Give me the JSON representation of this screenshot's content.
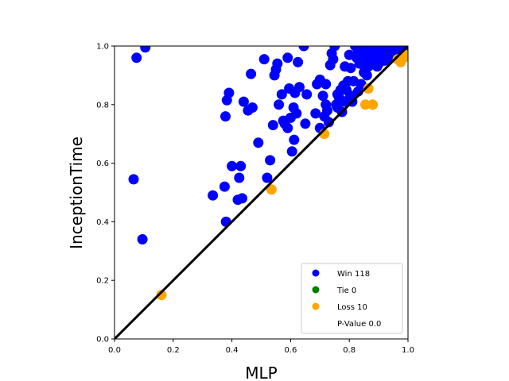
{
  "chart_data": {
    "type": "scatter",
    "xlabel": "MLP",
    "ylabel": "InceptionTime",
    "xlim": [
      0,
      1
    ],
    "ylim": [
      0,
      1
    ],
    "x_ticks": [
      "0.0",
      "0.2",
      "0.4",
      "0.6",
      "0.8",
      "1.0"
    ],
    "y_ticks": [
      "0.0",
      "0.2",
      "0.4",
      "0.6",
      "0.8",
      "1.0"
    ],
    "grid": false,
    "legend_position": "lower-right",
    "reference_line": {
      "from": [
        0,
        0
      ],
      "to": [
        1,
        1
      ],
      "color": "#000000"
    },
    "legend": [
      {
        "label": "Win 118",
        "color": "#0000ff"
      },
      {
        "label": "Tie 0",
        "color": "#008000"
      },
      {
        "label": "Loss 10",
        "color": "#ffa500"
      },
      {
        "label": "P-Value 0.0",
        "color": ""
      }
    ],
    "series": [
      {
        "name": "Win",
        "color": "#0000ff",
        "points": [
          [
            0.065,
            0.545
          ],
          [
            0.075,
            0.96
          ],
          [
            0.095,
            0.34
          ],
          [
            0.105,
            0.995
          ],
          [
            0.335,
            0.49
          ],
          [
            0.375,
            0.52
          ],
          [
            0.378,
            0.76
          ],
          [
            0.38,
            0.4
          ],
          [
            0.383,
            0.815
          ],
          [
            0.39,
            0.84
          ],
          [
            0.4,
            0.59
          ],
          [
            0.42,
            0.475
          ],
          [
            0.425,
            0.55
          ],
          [
            0.43,
            0.59
          ],
          [
            0.435,
            0.48
          ],
          [
            0.44,
            0.81
          ],
          [
            0.455,
            0.78
          ],
          [
            0.465,
            0.905
          ],
          [
            0.47,
            0.79
          ],
          [
            0.49,
            0.67
          ],
          [
            0.51,
            0.955
          ],
          [
            0.52,
            0.55
          ],
          [
            0.53,
            0.61
          ],
          [
            0.54,
            0.73
          ],
          [
            0.545,
            0.9
          ],
          [
            0.55,
            0.92
          ],
          [
            0.555,
            0.94
          ],
          [
            0.56,
            0.8
          ],
          [
            0.57,
            0.835
          ],
          [
            0.575,
            0.745
          ],
          [
            0.58,
            0.735
          ],
          [
            0.59,
            0.96
          ],
          [
            0.59,
            0.72
          ],
          [
            0.595,
            0.855
          ],
          [
            0.6,
            0.755
          ],
          [
            0.605,
            0.64
          ],
          [
            0.61,
            0.79
          ],
          [
            0.612,
            0.68
          ],
          [
            0.615,
            0.84
          ],
          [
            0.62,
            0.77
          ],
          [
            0.625,
            0.945
          ],
          [
            0.63,
            0.86
          ],
          [
            0.645,
            1.0
          ],
          [
            0.65,
            0.735
          ],
          [
            0.655,
            0.835
          ],
          [
            0.685,
            0.77
          ],
          [
            0.69,
            0.87
          ],
          [
            0.7,
            0.885
          ],
          [
            0.7,
            0.72
          ],
          [
            0.71,
            0.83
          ],
          [
            0.715,
            0.76
          ],
          [
            0.72,
            0.8
          ],
          [
            0.72,
            0.87
          ],
          [
            0.725,
            0.78
          ],
          [
            0.73,
            0.74
          ],
          [
            0.735,
            0.935
          ],
          [
            0.74,
            0.975
          ],
          [
            0.745,
            0.955
          ],
          [
            0.75,
            1.0
          ],
          [
            0.755,
            0.8
          ],
          [
            0.76,
            0.835
          ],
          [
            0.765,
            0.825
          ],
          [
            0.77,
            0.85
          ],
          [
            0.775,
            0.775
          ],
          [
            0.78,
            0.865
          ],
          [
            0.785,
            0.93
          ],
          [
            0.79,
            0.85
          ],
          [
            0.795,
            0.88
          ],
          [
            0.8,
            0.82
          ],
          [
            0.8,
            0.97
          ],
          [
            0.805,
            0.925
          ],
          [
            0.81,
            0.81
          ],
          [
            0.815,
            0.88
          ],
          [
            0.82,
            1.0
          ],
          [
            0.825,
            0.96
          ],
          [
            0.83,
            0.985
          ],
          [
            0.835,
            0.94
          ],
          [
            0.84,
            0.87
          ],
          [
            0.845,
            0.975
          ],
          [
            0.85,
            0.91
          ],
          [
            0.855,
            1.0
          ],
          [
            0.86,
            0.955
          ],
          [
            0.865,
            0.93
          ],
          [
            0.87,
            0.99
          ],
          [
            0.875,
            0.97
          ],
          [
            0.88,
            0.95
          ],
          [
            0.885,
            1.0
          ],
          [
            0.89,
            0.985
          ],
          [
            0.895,
            0.93
          ],
          [
            0.9,
            0.965
          ],
          [
            0.905,
            1.0
          ],
          [
            0.91,
            0.995
          ],
          [
            0.915,
            0.975
          ],
          [
            0.92,
            0.95
          ],
          [
            0.925,
            0.99
          ],
          [
            0.93,
            1.0
          ],
          [
            0.935,
            0.98
          ],
          [
            0.94,
            0.96
          ],
          [
            0.945,
            0.995
          ],
          [
            0.95,
            1.0
          ],
          [
            0.955,
            0.985
          ],
          [
            0.96,
            0.97
          ],
          [
            0.965,
            1.0
          ],
          [
            0.97,
            0.99
          ],
          [
            0.975,
            1.0
          ],
          [
            0.98,
            0.985
          ],
          [
            0.985,
            1.0
          ],
          [
            0.99,
            0.995
          ],
          [
            0.995,
            1.0
          ],
          [
            0.9,
            0.94
          ],
          [
            0.87,
            0.935
          ],
          [
            0.86,
            0.9
          ],
          [
            0.83,
            0.845
          ],
          [
            0.81,
            0.83
          ],
          [
            0.785,
            0.81
          ],
          [
            0.76,
            0.79
          ],
          [
            0.925,
            0.965
          ],
          [
            0.945,
            0.975
          ]
        ]
      },
      {
        "name": "Loss",
        "color": "#ffa500",
        "points": [
          [
            0.16,
            0.15
          ],
          [
            0.535,
            0.51
          ],
          [
            0.715,
            0.7
          ],
          [
            0.855,
            0.8
          ],
          [
            0.865,
            0.855
          ],
          [
            0.88,
            0.8
          ],
          [
            0.965,
            0.955
          ],
          [
            0.975,
            0.945
          ],
          [
            0.985,
            0.96
          ],
          [
            0.99,
            0.97
          ]
        ]
      }
    ]
  }
}
